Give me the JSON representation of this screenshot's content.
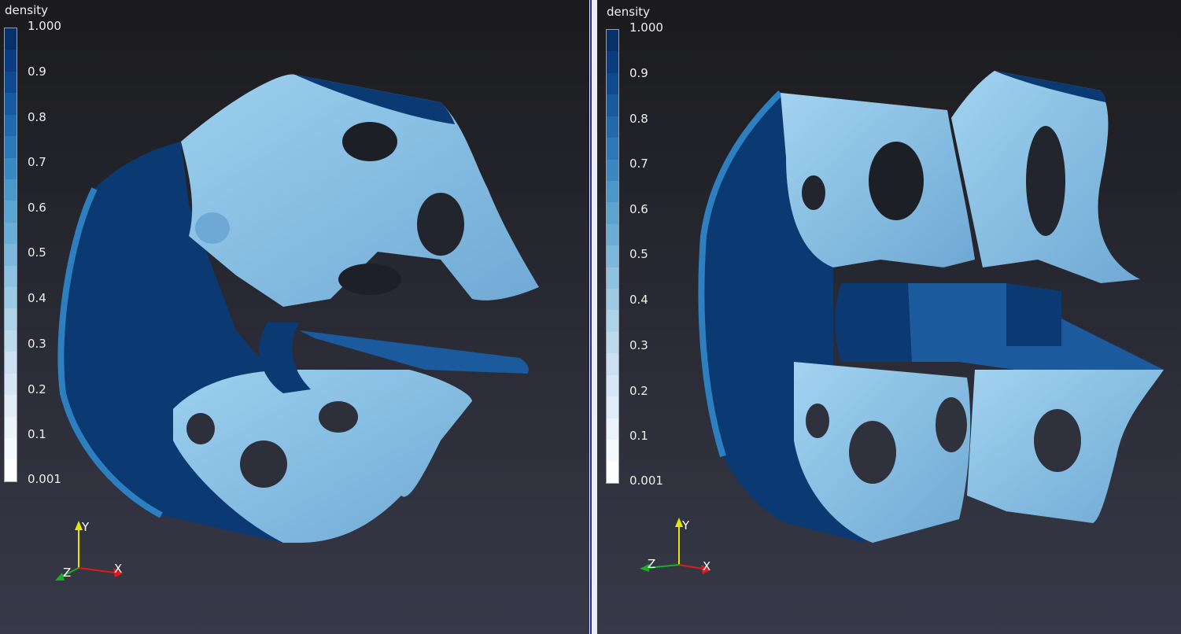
{
  "colors": {
    "background_top": "#1b1b1d",
    "background_bottom": "#373948",
    "divider": "#ececf2",
    "divider_accent": "#1f2fa3",
    "density_high": "#08306b",
    "density_mid": "#6aaed6",
    "density_low": "#ffffff",
    "surface_light": "#85c1e6",
    "surface_dark": "#0b3a72",
    "axis_x": "#e0191d",
    "axis_y": "#e6e600",
    "axis_z": "#17b023"
  },
  "views": [
    {
      "colorbar": {
        "title": "density",
        "labels": [
          "1.000",
          "0.9",
          "0.8",
          "0.7",
          "0.6",
          "0.5",
          "0.4",
          "0.3",
          "0.2",
          "0.1",
          "0.001"
        ]
      },
      "axes": {
        "x": "X",
        "y": "Y",
        "z": "Z"
      }
    },
    {
      "colorbar": {
        "title": "density",
        "labels": [
          "1.000",
          "0.9",
          "0.8",
          "0.7",
          "0.6",
          "0.5",
          "0.4",
          "0.3",
          "0.2",
          "0.1",
          "0.001"
        ]
      },
      "axes": {
        "x": "X",
        "y": "Y",
        "z": "Z"
      }
    }
  ],
  "colormap_steps": [
    "#08306b",
    "#0a3c7f",
    "#0f4a8f",
    "#175a9d",
    "#2169ab",
    "#2d79b8",
    "#3a88c1",
    "#4a97c9",
    "#5aa5d0",
    "#6aaed6",
    "#7bb8dc",
    "#8dc2e1",
    "#9ecae4",
    "#aed2e8",
    "#bdd9ec",
    "#cbe0f0",
    "#d7e6f4",
    "#e1edf8",
    "#ebf3fb",
    "#f4f9fd",
    "#ffffff"
  ]
}
